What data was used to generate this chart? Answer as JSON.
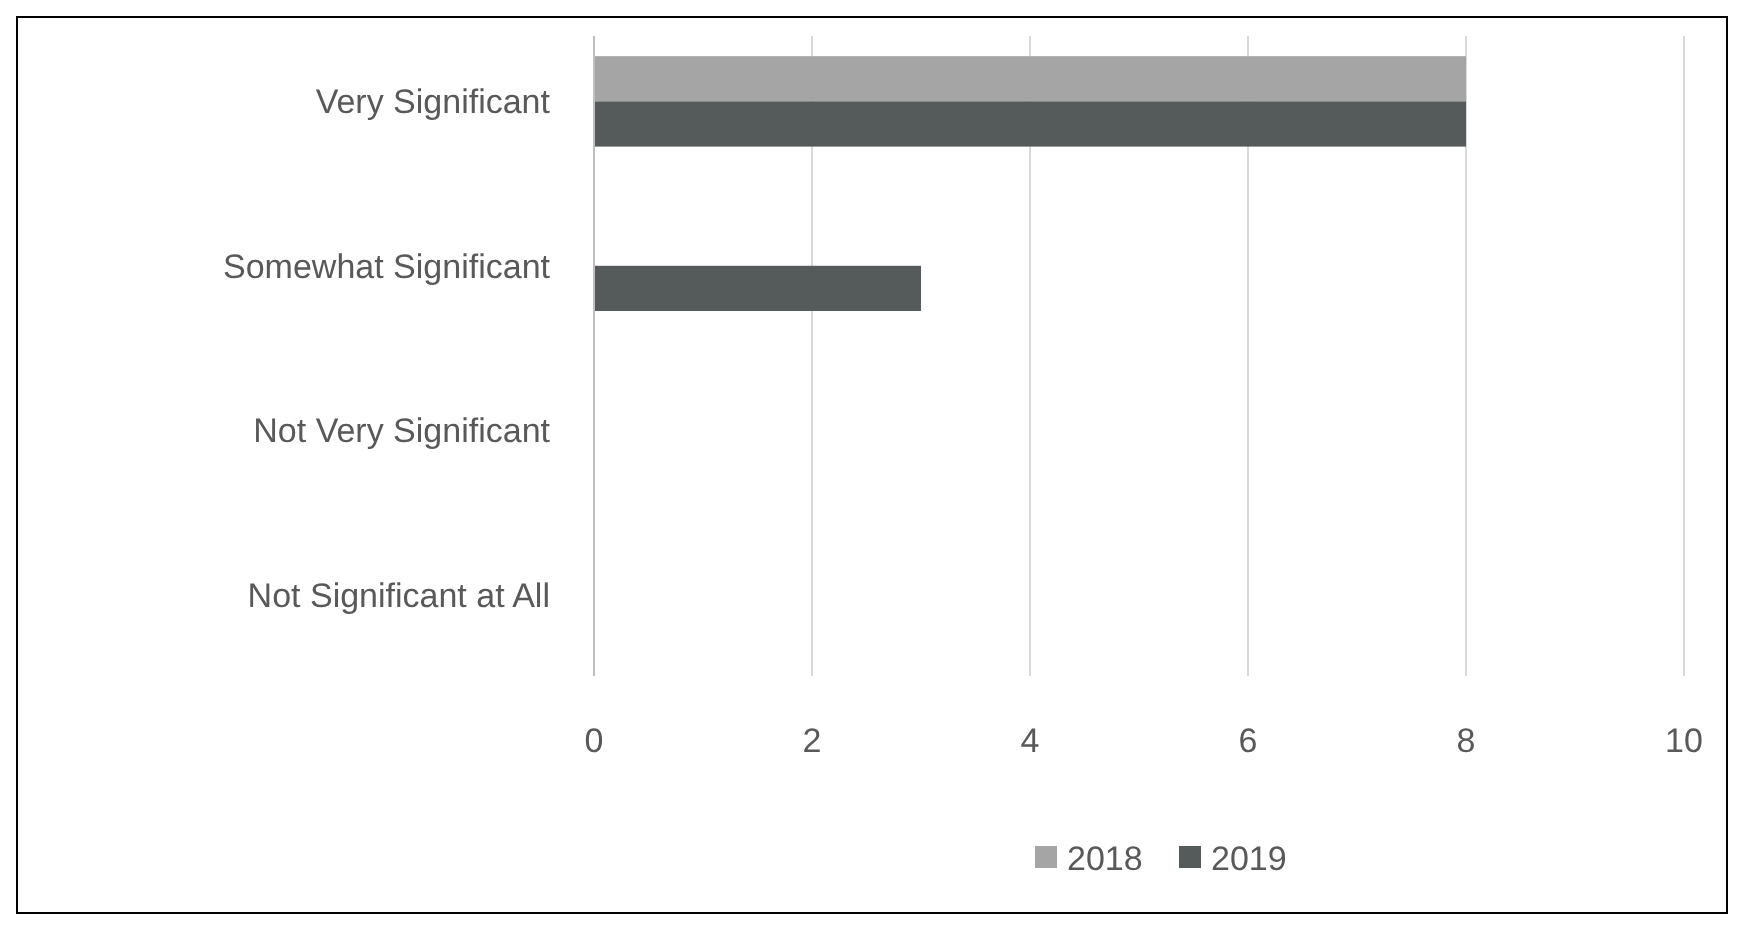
{
  "chart_data": {
    "type": "bar",
    "orientation": "horizontal",
    "categories": [
      "Very Significant",
      "Somewhat Significant",
      "Not Very Significant",
      "Not Significant at All"
    ],
    "series": [
      {
        "name": "2018",
        "color": "#a5a5a5",
        "values": [
          8,
          0,
          0,
          0
        ]
      },
      {
        "name": "2019",
        "color": "#555a5a",
        "values": [
          8,
          3,
          0,
          0
        ]
      }
    ],
    "xlim": [
      0,
      10
    ],
    "xticks": [
      0,
      2,
      4,
      6,
      8,
      10
    ],
    "grid": "x",
    "legend": "bottom"
  }
}
